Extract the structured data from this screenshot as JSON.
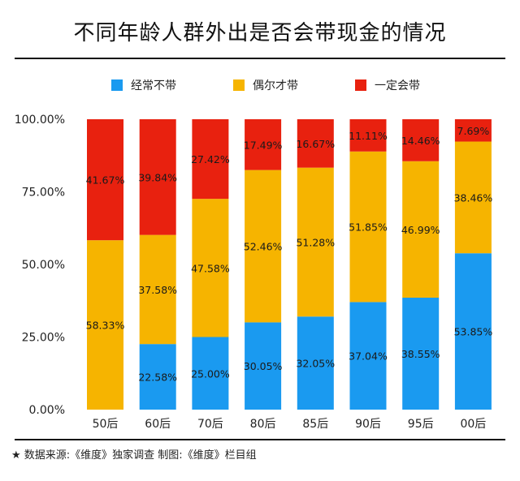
{
  "title": "不同年龄人群外出是否会带现金的情况",
  "footer": "★  数据来源:《维度》独家调查    制图:《维度》栏目组",
  "legend": [
    {
      "label": "经常不带",
      "color": "#1a9af0"
    },
    {
      "label": "偶尔才带",
      "color": "#f6b400"
    },
    {
      "label": "一定会带",
      "color": "#e8210f"
    }
  ],
  "chart_data": {
    "type": "bar",
    "stacked": true,
    "categories": [
      "50后",
      "60后",
      "70后",
      "80后",
      "85后",
      "90后",
      "95后",
      "00后"
    ],
    "yticks": [
      "0.00%",
      "25.00%",
      "50.00%",
      "75.00%",
      "100.00%"
    ],
    "ylim": [
      0,
      100
    ],
    "series": [
      {
        "name": "经常不带",
        "color": "#1a9af0",
        "values": [
          0,
          22.58,
          25.0,
          30.05,
          32.05,
          37.04,
          38.55,
          53.85
        ],
        "labels": [
          "",
          "22.58%",
          "25.00%",
          "30.05%",
          "32.05%",
          "37.04%",
          "38.55%",
          "53.85%"
        ]
      },
      {
        "name": "偶尔才带",
        "color": "#f6b400",
        "values": [
          58.33,
          37.58,
          47.58,
          52.46,
          51.28,
          51.85,
          46.99,
          38.46
        ],
        "labels": [
          "58.33%",
          "37.58%",
          "47.58%",
          "52.46%",
          "51.28%",
          "51.85%",
          "46.99%",
          "38.46%"
        ]
      },
      {
        "name": "一定会带",
        "color": "#e8210f",
        "values": [
          41.67,
          39.84,
          27.42,
          17.49,
          16.67,
          11.11,
          14.46,
          7.69
        ],
        "labels": [
          "41.67%",
          "39.84%",
          "27.42%",
          "17.49%",
          "16.67%",
          "11.11%",
          "14.46%",
          "7.69%"
        ]
      }
    ]
  }
}
